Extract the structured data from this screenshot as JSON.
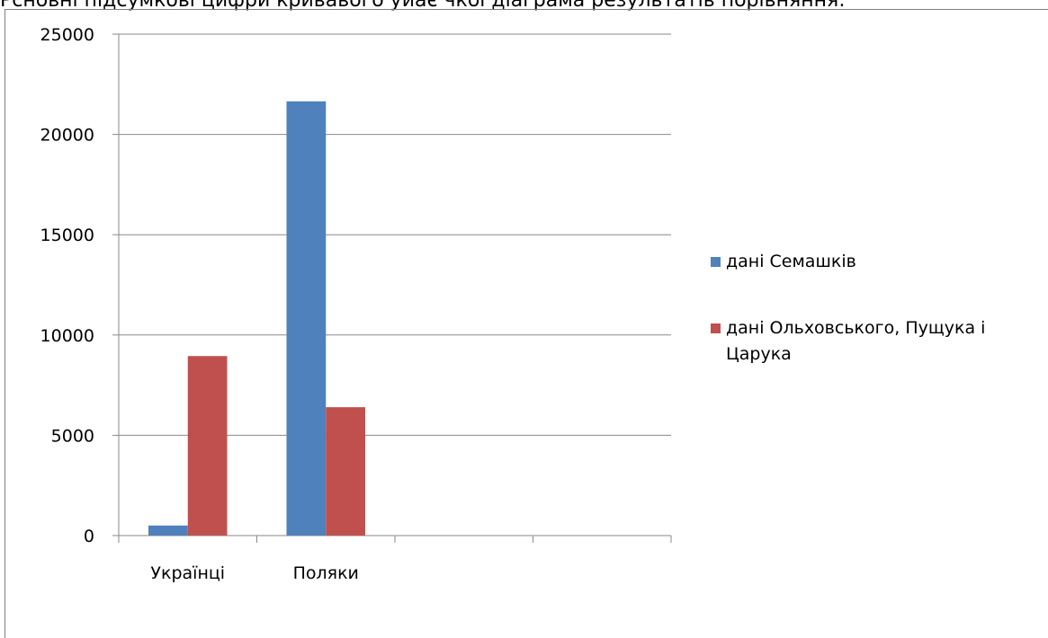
{
  "caption": "Рсновні підсумкові цифри кривавого уйає чкої діаграма результатів порівняння:",
  "chart_data": {
    "type": "bar",
    "categories": [
      "Українці",
      "Поляки",
      "",
      ""
    ],
    "series": [
      {
        "name": "дані Семашків",
        "values": [
          500,
          21650,
          null,
          null
        ],
        "color": "#4f81bd"
      },
      {
        "name": "дані Ольховського, Пущука і Царука",
        "values": [
          8950,
          6400,
          null,
          null
        ],
        "color": "#c0504d"
      }
    ],
    "yticks": [
      "0",
      "5000",
      "10000",
      "15000",
      "20000",
      "25000"
    ],
    "ylim": [
      0,
      25000
    ],
    "title": "",
    "xlabel": "",
    "ylabel": "",
    "grid": true,
    "legend": "right"
  }
}
